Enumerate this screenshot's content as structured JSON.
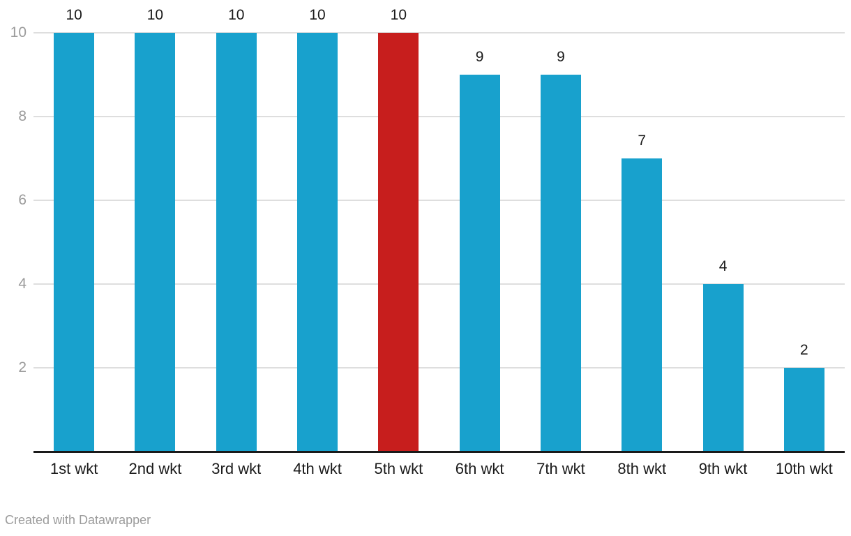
{
  "chart_data": {
    "type": "bar",
    "categories": [
      "1st wkt",
      "2nd wkt",
      "3rd wkt",
      "4th wkt",
      "5th wkt",
      "6th wkt",
      "7th wkt",
      "8th wkt",
      "9th wkt",
      "10th wkt"
    ],
    "values": [
      10,
      10,
      10,
      10,
      10,
      9,
      9,
      7,
      4,
      2
    ],
    "value_labels": [
      "10",
      "10",
      "10",
      "10",
      "10",
      "9",
      "9",
      "7",
      "4",
      "2"
    ],
    "title": "",
    "xlabel": "",
    "ylabel": "",
    "ylim": [
      0,
      10
    ],
    "yticks": [
      2,
      4,
      6,
      8,
      10
    ],
    "grid": true,
    "legend": "none",
    "bar_color": "#18a1cd",
    "highlight_index": 4,
    "highlight_color": "#c71e1d",
    "gridline_color": "#dedede",
    "baseline_color": "#1a1a1a",
    "ytick_color": "#9b9b9b",
    "label_color": "#1a1a1a"
  },
  "footer": {
    "attribution": "Created with Datawrapper"
  }
}
